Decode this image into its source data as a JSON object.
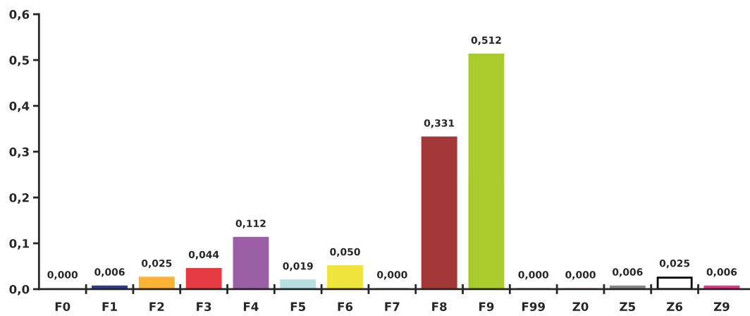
{
  "chart_data": {
    "type": "bar",
    "categories": [
      "F0",
      "F1",
      "F2",
      "F3",
      "F4",
      "F5",
      "F6",
      "F7",
      "F8",
      "F9",
      "F99",
      "Z0",
      "Z5",
      "Z6",
      "Z9"
    ],
    "values": [
      0,
      0.006,
      0.025,
      0.044,
      0.112,
      0.019,
      0.05,
      0,
      0.331,
      0.512,
      0,
      0,
      0.006,
      0.025,
      0.006
    ],
    "value_labels": [
      "0,000",
      "0,006",
      "0,025",
      "0,044",
      "0,112",
      "0,019",
      "0,050",
      "0,000",
      "0,331",
      "0,512",
      "0,000",
      "0,000",
      "0,006",
      "0,025",
      "0,006"
    ],
    "colors": [
      "#c8d8c8",
      "#2e3a8c",
      "#f9b233",
      "#e63b43",
      "#9b5fa5",
      "#b5dfe3",
      "#efe43c",
      "#7fbf7f",
      "#a33838",
      "#aacb2c",
      "#999999",
      "#d4a0c8",
      "#878787",
      "#ffffff",
      "#e5358a"
    ],
    "ylim": [
      0,
      0.6
    ],
    "yticks": [
      {
        "value": 0,
        "label": "0,0"
      },
      {
        "value": 0.1,
        "label": "0,1"
      },
      {
        "value": 0.2,
        "label": "0,2"
      },
      {
        "value": 0.3,
        "label": "0,3"
      },
      {
        "value": 0.4,
        "label": "0,4"
      },
      {
        "value": 0.5,
        "label": "0,5"
      },
      {
        "value": 0.6,
        "label": "0,6"
      }
    ],
    "grid": false
  }
}
